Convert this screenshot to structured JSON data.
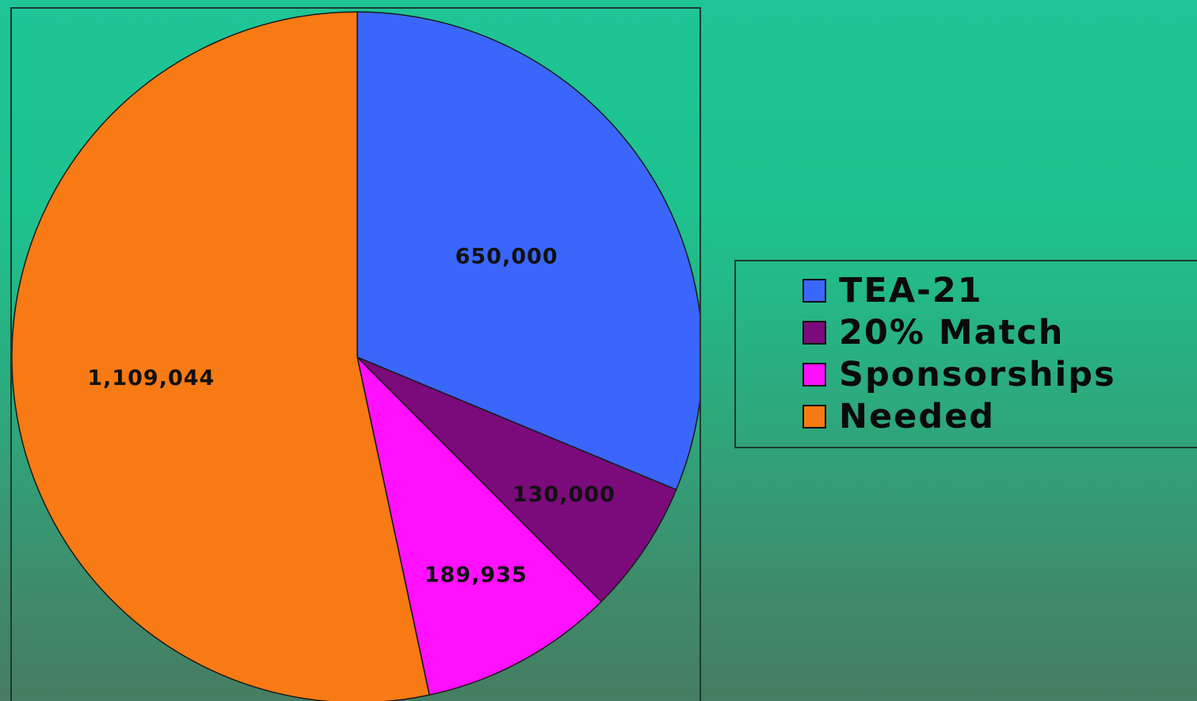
{
  "chart_data": {
    "type": "pie",
    "slices": [
      {
        "name": "TEA-21",
        "value": 650000,
        "label": "650,000",
        "color": "#3b66fb"
      },
      {
        "name": "20% Match",
        "value": 130000,
        "label": "130,000",
        "color": "#7b0a7b"
      },
      {
        "name": "Sponsorships",
        "value": 189935,
        "label": "189,935",
        "color": "#ff10ff"
      },
      {
        "name": "Needed",
        "value": 1109044,
        "label": "1,109,044",
        "color": "#f77a14"
      }
    ],
    "legend": {
      "position": "right",
      "items": [
        "TEA-21",
        "20% Match",
        "Sponsorships",
        "Needed"
      ]
    },
    "start_angle": "12 o'clock",
    "direction": "clockwise"
  }
}
